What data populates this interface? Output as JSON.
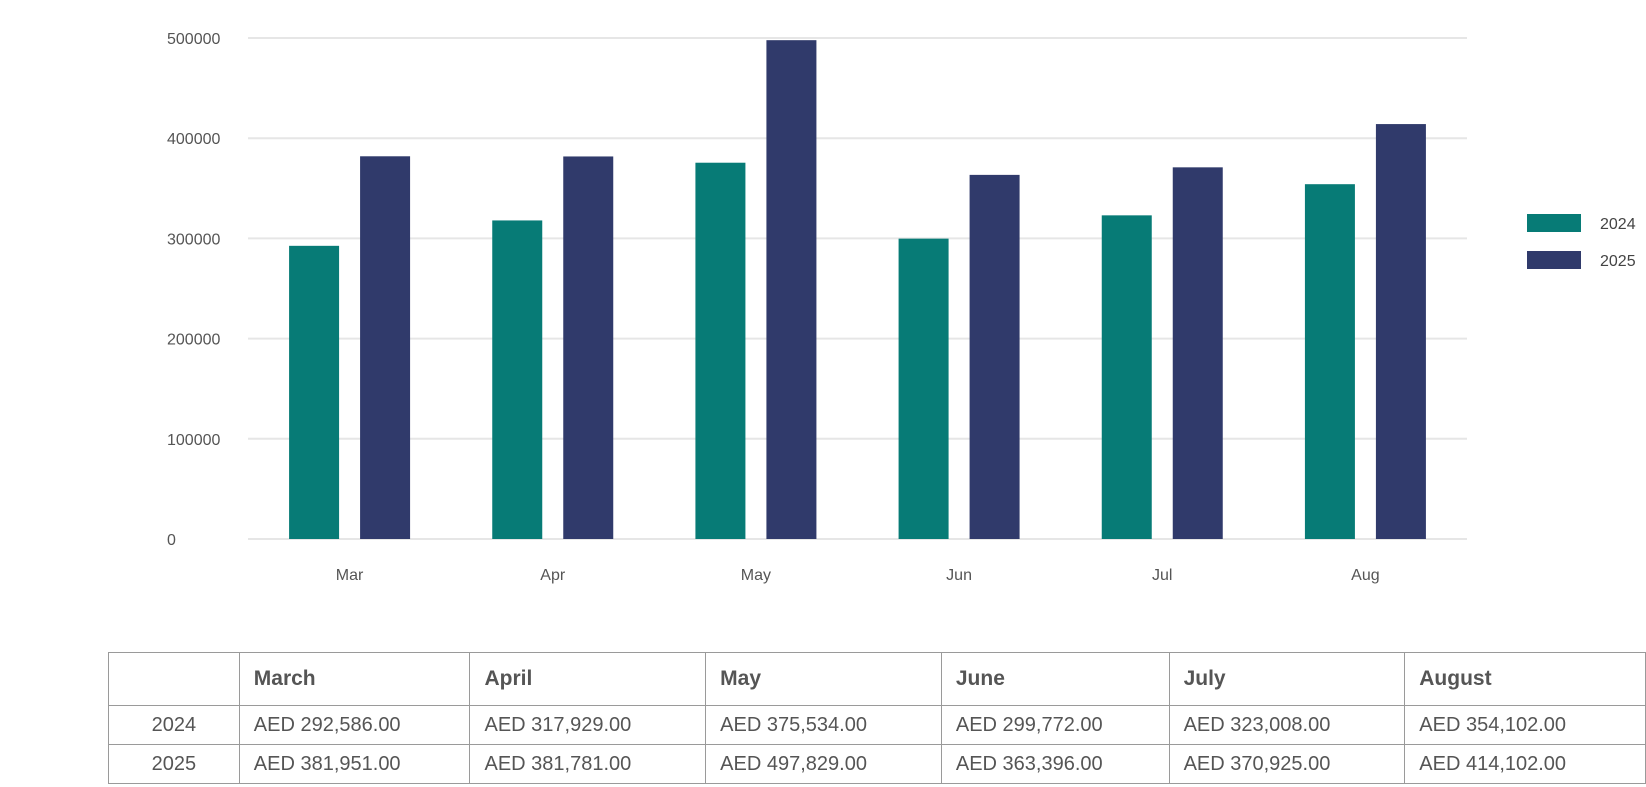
{
  "chart_data": {
    "type": "bar",
    "categories": [
      "Mar",
      "Apr",
      "May",
      "Jun",
      "Jul",
      "Aug"
    ],
    "series": [
      {
        "name": "2024",
        "values": [
          292586,
          317929,
          375534,
          299772,
          323008,
          354102
        ],
        "color": "#077b76"
      },
      {
        "name": "2025",
        "values": [
          381951,
          381781,
          497829,
          363396,
          370925,
          414102
        ],
        "color": "#303a6b"
      }
    ],
    "yticks": [
      "0",
      "100000",
      "200000",
      "300000",
      "400000",
      "500000"
    ],
    "ylim": [
      0,
      500000
    ],
    "grid": true,
    "legend_position": "right"
  },
  "table": {
    "headers": [
      "",
      "March",
      "April",
      "May",
      "June",
      "July",
      "August"
    ],
    "rows": [
      {
        "label": "2024",
        "cells": [
          "AED 292,586.00",
          "AED 317,929.00",
          "AED 375,534.00",
          "AED 299,772.00",
          "AED 323,008.00",
          "AED 354,102.00"
        ]
      },
      {
        "label": "2025",
        "cells": [
          "AED 381,951.00",
          "AED 381,781.00",
          "AED 497,829.00",
          "AED 363,396.00",
          "AED 370,925.00",
          "AED 414,102.00"
        ]
      }
    ]
  }
}
